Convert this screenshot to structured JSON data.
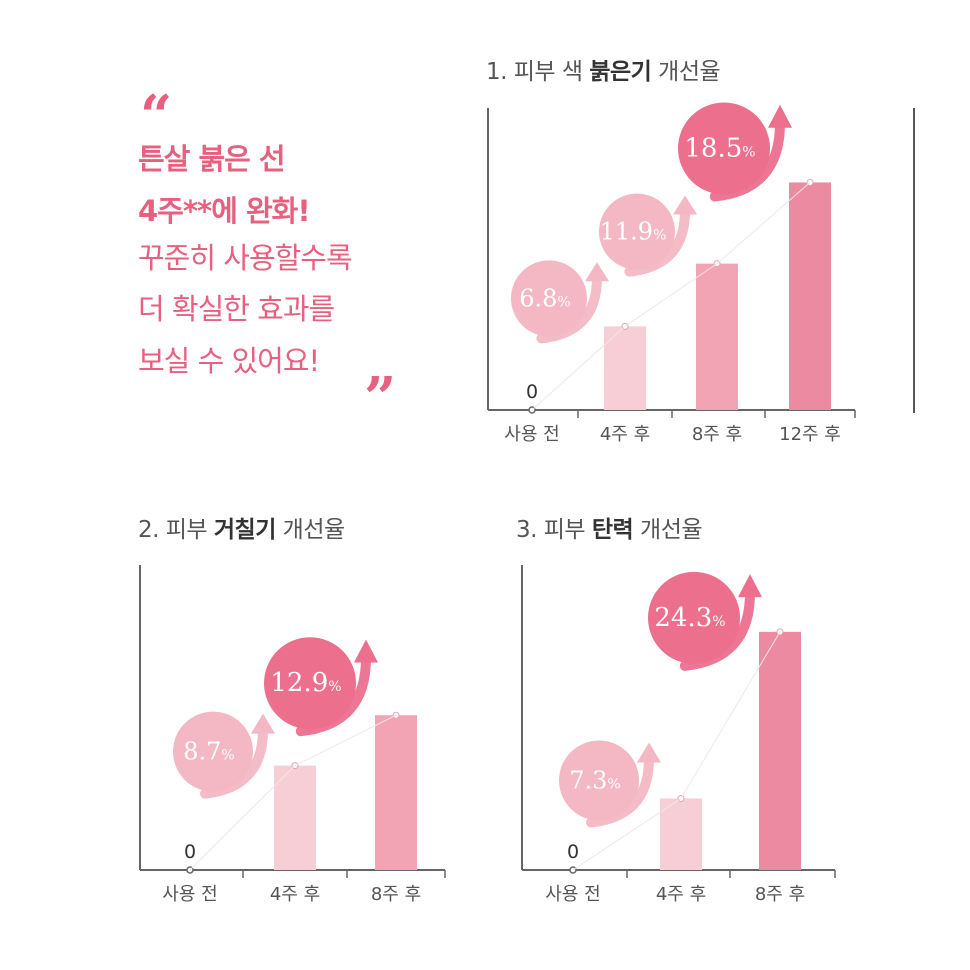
{
  "promo": {
    "open_quote": "“",
    "close_quote": "”",
    "lines": [
      "튼살 붉은 선",
      "4주**에 완화!",
      "꾸준히 사용할수록",
      "더 확실한 효과를",
      "보실 수 있어요!"
    ]
  },
  "colors": {
    "accent": "#e8607f",
    "bar_light": "#f7cdd6",
    "bar_mid": "#f2a4b5",
    "bar_strong": "#ec8aa2",
    "bubble_light": "#f3b8c4",
    "bubble_strong": "#ec6f8e",
    "axis": "#666666"
  },
  "chart_data": [
    {
      "type": "bar",
      "title_prefix": "1. 피부 색 ",
      "title_highlight": "붉은기",
      "title_suffix": " 개선율",
      "categories": [
        "사용 전",
        "4주 후",
        "8주 후",
        "12주 후"
      ],
      "values": [
        0,
        6.8,
        11.9,
        18.5
      ],
      "labels": [
        "0",
        "6.8%",
        "11.9%",
        "18.5%"
      ],
      "ylim": [
        0,
        20
      ]
    },
    {
      "type": "bar",
      "title_prefix": "2. 피부 ",
      "title_highlight": "거칠기",
      "title_suffix": " 개선율",
      "categories": [
        "사용 전",
        "4주 후",
        "8주 후"
      ],
      "values": [
        0,
        8.7,
        12.9
      ],
      "labels": [
        "0",
        "8.7%",
        "12.9%"
      ],
      "ylim": [
        0,
        20
      ]
    },
    {
      "type": "bar",
      "title_prefix": "3. 피부 ",
      "title_highlight": "탄력",
      "title_suffix": " 개선율",
      "categories": [
        "사용 전",
        "4주 후",
        "8주 후"
      ],
      "values": [
        0,
        7.3,
        24.3
      ],
      "labels": [
        "0",
        "7.3%",
        "24.3%"
      ],
      "ylim": [
        0,
        26
      ]
    }
  ]
}
